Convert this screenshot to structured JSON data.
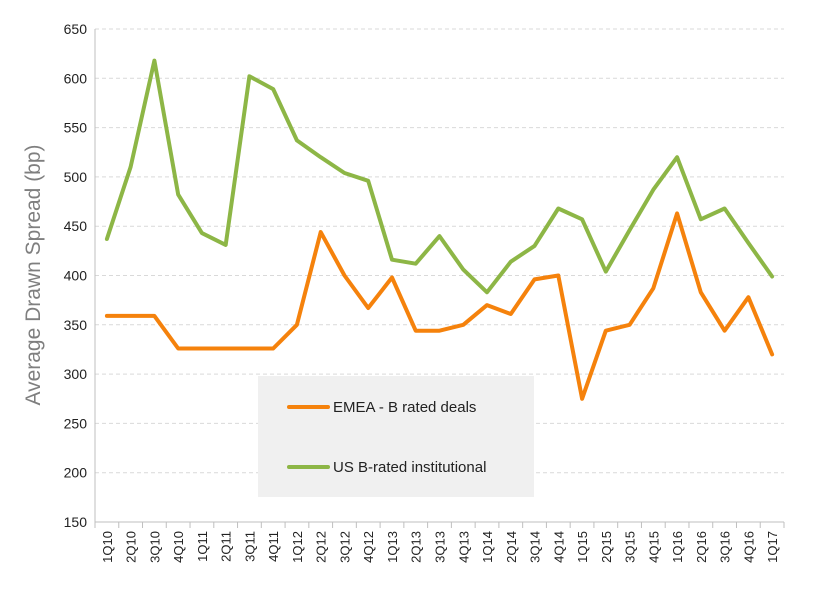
{
  "chart_data": {
    "type": "line",
    "title": "",
    "xlabel": "",
    "ylabel": "Average Drawn Spread (bp)",
    "ylim": [
      150,
      650
    ],
    "yticks": [
      "150",
      "200",
      "250",
      "300",
      "350",
      "400",
      "450",
      "500",
      "550",
      "600",
      "650"
    ],
    "grid": "horizontal dashed",
    "legend_position": "bottom-center inside plot",
    "categories": [
      "1Q10",
      "2Q10",
      "3Q10",
      "4Q10",
      "1Q11",
      "2Q11",
      "3Q11",
      "4Q11",
      "1Q12",
      "2Q12",
      "3Q12",
      "4Q12",
      "1Q13",
      "2Q13",
      "3Q13",
      "4Q13",
      "1Q14",
      "2Q14",
      "3Q14",
      "4Q14",
      "1Q15",
      "2Q15",
      "3Q15",
      "4Q15",
      "1Q16",
      "2Q16",
      "3Q16",
      "4Q16",
      "1Q17"
    ],
    "series": [
      {
        "name": "EMEA - B rated deals",
        "color": "#F5820C",
        "values": [
          359,
          359,
          359,
          326,
          326,
          326,
          326,
          326,
          350,
          444,
          400,
          367,
          398,
          344,
          344,
          350,
          370,
          361,
          396,
          400,
          275,
          344,
          350,
          387,
          463,
          383,
          344,
          378,
          320
        ]
      },
      {
        "name": "US B-rated institutional",
        "color": "#8DB646",
        "values": [
          437,
          510,
          618,
          482,
          443,
          431,
          602,
          589,
          537,
          520,
          504,
          496,
          416,
          412,
          440,
          406,
          383,
          414,
          430,
          468,
          457,
          404,
          446,
          487,
          520,
          457,
          468,
          433,
          399
        ]
      }
    ]
  }
}
